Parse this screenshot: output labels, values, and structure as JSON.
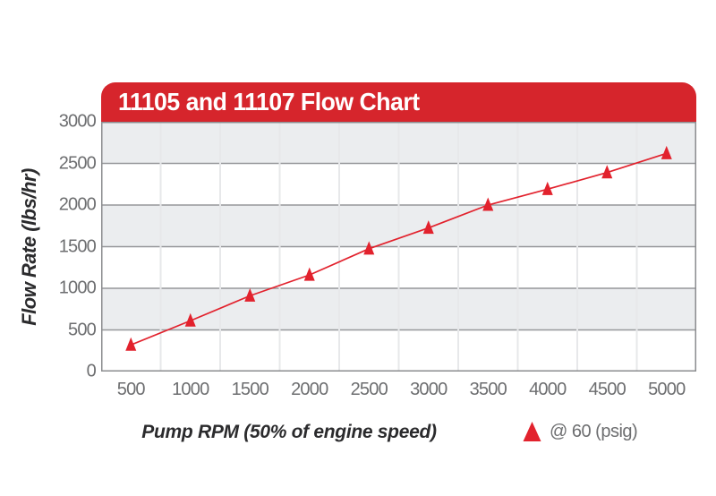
{
  "header": {
    "title": "11105 and 11107 Flow Chart"
  },
  "y_axis": {
    "title": "Flow Rate (lbs/hr)",
    "ticks": [
      0,
      500,
      1000,
      1500,
      2000,
      2500,
      3000
    ],
    "min": 0,
    "max": 3000
  },
  "x_axis": {
    "title": "Pump RPM (50% of engine speed)",
    "ticks": [
      500,
      1000,
      1500,
      2000,
      2500,
      3000,
      3500,
      4000,
      4500,
      5000
    ]
  },
  "legend": {
    "marker": "triangle-up-icon",
    "label": "@ 60 (psig)"
  },
  "chart_data": {
    "type": "line",
    "title": "11105 and 11107 Flow Chart",
    "xlabel": "Pump RPM (50% of engine speed)",
    "ylabel": "Flow Rate (lbs/hr)",
    "x": [
      500,
      1000,
      1500,
      2000,
      2500,
      3000,
      3500,
      4000,
      4500,
      5000
    ],
    "series": [
      {
        "name": "@ 60 (psig)",
        "marker": "triangle-up",
        "values": [
          320,
          610,
          910,
          1160,
          1475,
          1725,
          2000,
          2190,
          2390,
          2620
        ]
      }
    ],
    "ylim": [
      0,
      3000
    ],
    "y_gridline_step": 500,
    "grid": {
      "horizontal": true,
      "vertical": true,
      "alternating_bands": true
    },
    "legend_position": "bottom-right"
  },
  "colors": {
    "banner_red": "#d6252c",
    "series_red": "#e2222d",
    "band_gray": "#ebedef",
    "band_white": "#ffffff",
    "h_gridline": "#96979a",
    "v_gridline": "#e7e8ea",
    "plot_border": "#8b8c8f",
    "tick_text": "#6d6e70",
    "axis_title_text": "#2b2b2d",
    "banner_text": "#ffffff"
  }
}
